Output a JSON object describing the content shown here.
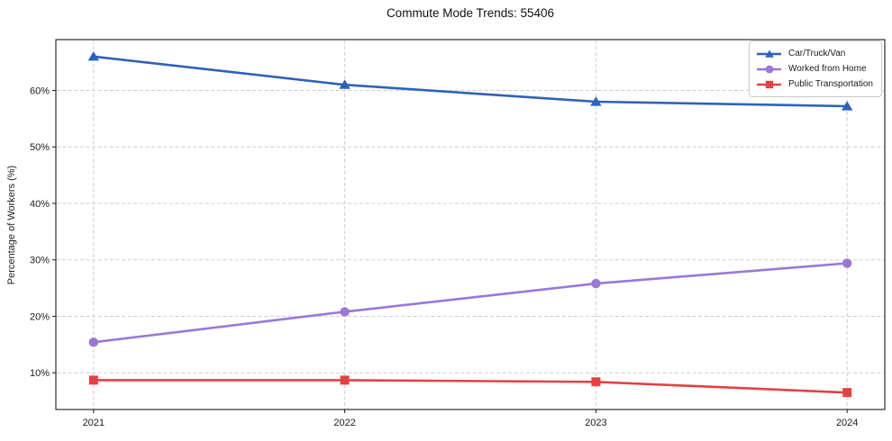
{
  "chart_data": {
    "type": "line",
    "title": "Commute Mode Trends: 55406",
    "xlabel": "",
    "ylabel": "Percentage of Workers (%)",
    "x": [
      2021,
      2022,
      2023,
      2024
    ],
    "xticklabels": [
      "2021",
      "2022",
      "2023",
      "2024"
    ],
    "yticks": [
      10,
      20,
      30,
      40,
      50,
      60
    ],
    "yticklabels": [
      "10%",
      "20%",
      "30%",
      "40%",
      "50%",
      "60%"
    ],
    "xlim": [
      2020.85,
      2024.15
    ],
    "ylim": [
      3.5,
      69
    ],
    "grid": true,
    "grid_style": "dashed",
    "grid_color": "#cdcdcd",
    "axis_color": "#1a1a1a",
    "legend_position": "upper right",
    "series": [
      {
        "name": "Car/Truck/Van",
        "color": "#2e62ba",
        "marker": "triangle",
        "values": [
          66.0,
          61.0,
          58.0,
          57.2
        ]
      },
      {
        "name": "Worked from Home",
        "color": "#9a78d6",
        "marker": "circle",
        "values": [
          15.4,
          20.8,
          25.8,
          29.4
        ]
      },
      {
        "name": "Public Transportation",
        "color": "#e04343",
        "marker": "square",
        "values": [
          8.7,
          8.7,
          8.4,
          6.5
        ]
      }
    ]
  }
}
